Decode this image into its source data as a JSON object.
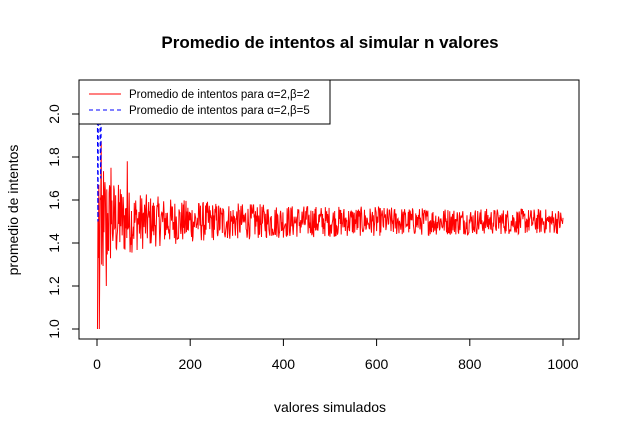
{
  "chart_data": {
    "type": "line",
    "title": "Promedio de intentos al simular n valores",
    "xlabel": "valores simulados",
    "ylabel": "promedio de intentos",
    "xlim": [
      0,
      1000
    ],
    "ylim": [
      1.0,
      2.0
    ],
    "x_ticks": [
      0,
      200,
      400,
      600,
      800,
      1000
    ],
    "y_ticks": [
      1.0,
      1.2,
      1.4,
      1.6,
      1.8,
      2.0
    ],
    "y_tick_labels": [
      "1.0",
      "1.2",
      "1.4",
      "1.6",
      "1.8",
      "2.0"
    ],
    "grid": false,
    "legend_position": "top-left",
    "n_points": 1000,
    "series": [
      {
        "name": "Promedio de intentos para α=2,β=2",
        "color": "#ff0000",
        "line_style": "solid",
        "mean": 1.5,
        "sample_points": [
          [
            1,
            1.0
          ],
          [
            2,
            1.5
          ],
          [
            3,
            1.33
          ],
          [
            5,
            1.0
          ],
          [
            8,
            1.6
          ],
          [
            10,
            1.3
          ],
          [
            15,
            1.45
          ],
          [
            20,
            1.2
          ],
          [
            30,
            1.75
          ],
          [
            50,
            1.65
          ],
          [
            65,
            1.78
          ],
          [
            100,
            1.45
          ],
          [
            200,
            1.55
          ],
          [
            300,
            1.5
          ],
          [
            500,
            1.5
          ],
          [
            800,
            1.5
          ],
          [
            1000,
            1.5
          ]
        ]
      },
      {
        "name": "Promedio de intentos para α=2,β=5",
        "color": "#0000ff",
        "line_style": "dashed",
        "sample_points": [
          [
            1,
            2.0
          ],
          [
            2,
            1.5
          ],
          [
            3,
            2.33
          ],
          [
            5,
            2.2
          ],
          [
            8,
            1.7
          ],
          [
            10,
            2.4
          ],
          [
            12,
            2.0
          ],
          [
            15,
            2.1
          ],
          [
            20,
            2.3
          ]
        ]
      }
    ]
  }
}
